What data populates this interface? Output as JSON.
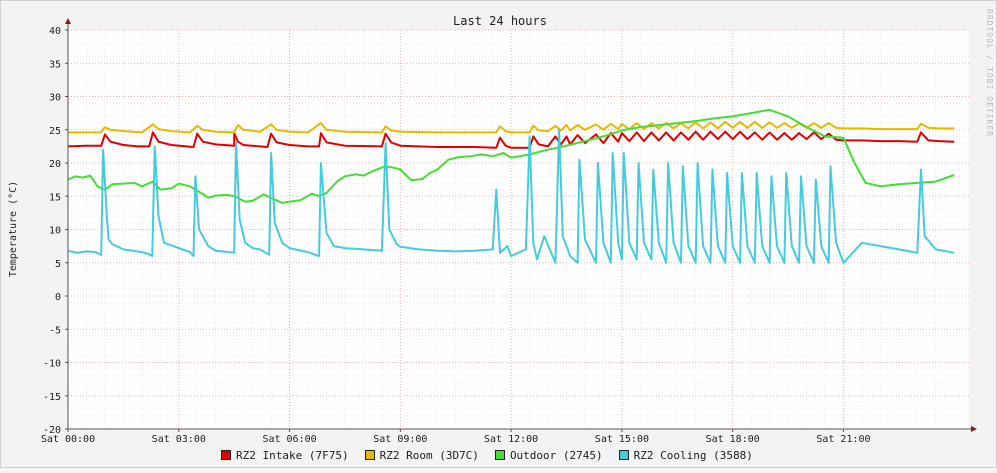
{
  "chart_data": {
    "type": "line",
    "title": "Last 24 hours",
    "ylabel": "Temperature (°C)",
    "watermark": "RRDTOOL / TOBI OETIKER",
    "ylim": [
      -20,
      40
    ],
    "yticks": [
      40,
      35,
      30,
      25,
      20,
      15,
      10,
      5,
      0,
      -5,
      -10,
      -15,
      -20
    ],
    "xlim": [
      0,
      24.4
    ],
    "xticks": [
      {
        "x": 0,
        "label": "Sat 00:00"
      },
      {
        "x": 3,
        "label": "Sat 03:00"
      },
      {
        "x": 6,
        "label": "Sat 06:00"
      },
      {
        "x": 9,
        "label": "Sat 09:00"
      },
      {
        "x": 12,
        "label": "Sat 12:00"
      },
      {
        "x": 15,
        "label": "Sat 15:00"
      },
      {
        "x": 18,
        "label": "Sat 18:00"
      },
      {
        "x": 21,
        "label": "Sat 21:00"
      }
    ],
    "grid": true,
    "legend_position": "bottom",
    "colors": {
      "background": "#f3f3f3",
      "canvas": "#ffffff",
      "grid_major": "#e6b3b3",
      "grid_minor": "#ececec",
      "axis": "#555555",
      "arrow": "#8b1a1a"
    },
    "series": [
      {
        "name": "RZ2 Intake (7F75)",
        "color": "#e00000",
        "x": [
          0.0,
          0.5,
          0.9,
          1.0,
          1.15,
          1.5,
          1.9,
          2.2,
          2.3,
          2.45,
          2.8,
          3.2,
          3.4,
          3.5,
          3.65,
          4.0,
          4.5,
          4.5,
          4.6,
          4.75,
          5.2,
          5.4,
          5.5,
          5.65,
          6.0,
          6.5,
          6.8,
          6.85,
          7.0,
          7.5,
          8.5,
          8.6,
          8.75,
          9.0,
          10.0,
          11.0,
          11.6,
          11.7,
          11.85,
          12.0,
          12.5,
          12.6,
          12.75,
          13.0,
          13.2,
          13.35,
          13.5,
          13.6,
          13.8,
          14.0,
          14.3,
          14.5,
          14.7,
          14.9,
          15.0,
          15.2,
          15.4,
          15.6,
          15.8,
          16.0,
          16.2,
          16.4,
          16.6,
          16.8,
          17.0,
          17.2,
          17.4,
          17.6,
          17.8,
          18.0,
          18.2,
          18.4,
          18.6,
          18.8,
          19.0,
          19.2,
          19.4,
          19.6,
          19.8,
          20.0,
          20.2,
          20.4,
          20.6,
          20.8,
          21.0,
          21.5,
          22.0,
          22.5,
          23.0,
          23.1,
          23.3,
          23.6,
          24.0
        ],
        "y": [
          22.5,
          22.6,
          22.6,
          24.3,
          23.2,
          22.7,
          22.5,
          22.5,
          24.6,
          23.2,
          22.7,
          22.5,
          22.4,
          24.4,
          23.2,
          22.8,
          22.6,
          24.5,
          23.2,
          22.7,
          22.5,
          22.4,
          24.4,
          23.1,
          22.7,
          22.5,
          22.5,
          24.5,
          23.1,
          22.6,
          22.5,
          24.4,
          23.1,
          22.6,
          22.4,
          22.4,
          22.3,
          23.8,
          22.6,
          22.3,
          22.3,
          24.0,
          22.8,
          22.5,
          24.0,
          22.8,
          24.0,
          22.8,
          24.2,
          23.0,
          24.3,
          23.0,
          24.5,
          23.2,
          24.5,
          23.3,
          24.6,
          23.3,
          24.6,
          23.4,
          24.6,
          23.4,
          24.6,
          23.5,
          24.7,
          23.5,
          24.7,
          23.6,
          24.7,
          23.6,
          24.7,
          23.6,
          24.6,
          23.5,
          24.6,
          23.5,
          24.5,
          23.5,
          24.5,
          23.6,
          24.6,
          23.6,
          24.4,
          23.5,
          23.4,
          23.4,
          23.3,
          23.3,
          23.2,
          24.6,
          23.4,
          23.3,
          23.2
        ]
      },
      {
        "name": "RZ2 Room (3D7C)",
        "color": "#e8b800",
        "x": [
          0.0,
          0.5,
          0.9,
          1.0,
          1.15,
          1.5,
          2.0,
          2.3,
          2.45,
          2.8,
          3.3,
          3.5,
          3.65,
          4.0,
          4.5,
          4.6,
          4.75,
          5.2,
          5.5,
          5.65,
          6.0,
          6.5,
          6.85,
          7.0,
          7.5,
          8.5,
          8.6,
          8.75,
          9.0,
          10.0,
          11.0,
          11.6,
          11.7,
          11.85,
          12.0,
          12.5,
          12.6,
          12.75,
          13.0,
          13.2,
          13.35,
          13.5,
          13.6,
          13.8,
          14.0,
          14.3,
          14.5,
          14.7,
          14.9,
          15.0,
          15.2,
          15.4,
          15.6,
          15.8,
          16.0,
          16.2,
          16.4,
          16.6,
          16.8,
          17.0,
          17.2,
          17.4,
          17.6,
          17.8,
          18.0,
          18.2,
          18.4,
          18.6,
          18.8,
          19.0,
          19.2,
          19.4,
          19.6,
          19.8,
          20.0,
          20.2,
          20.4,
          20.6,
          20.8,
          21.0,
          21.5,
          22.0,
          22.5,
          23.0,
          23.1,
          23.3,
          23.6,
          24.0
        ],
        "y": [
          24.6,
          24.6,
          24.6,
          25.4,
          25.0,
          24.8,
          24.6,
          25.8,
          25.1,
          24.8,
          24.6,
          25.6,
          25.0,
          24.7,
          24.6,
          25.7,
          25.0,
          24.7,
          25.8,
          25.0,
          24.7,
          24.6,
          26.0,
          25.0,
          24.7,
          24.6,
          25.5,
          24.9,
          24.7,
          24.6,
          24.6,
          24.6,
          25.5,
          24.8,
          24.6,
          24.6,
          25.6,
          24.9,
          24.8,
          25.6,
          24.9,
          25.7,
          24.9,
          25.7,
          25.0,
          25.8,
          25.0,
          25.9,
          25.1,
          25.9,
          25.1,
          26.0,
          25.1,
          26.0,
          25.2,
          26.0,
          25.2,
          26.0,
          25.2,
          26.1,
          25.2,
          26.1,
          25.2,
          26.2,
          25.3,
          26.2,
          25.3,
          26.2,
          25.3,
          26.1,
          25.3,
          26.0,
          25.3,
          26.0,
          25.3,
          26.0,
          25.3,
          26.0,
          25.3,
          25.2,
          25.2,
          25.1,
          25.1,
          25.1,
          25.9,
          25.3,
          25.2,
          25.2
        ]
      },
      {
        "name": "Outdoor (2745)",
        "color": "#44dd33",
        "x": [
          0.0,
          0.2,
          0.4,
          0.6,
          0.8,
          1.0,
          1.2,
          1.5,
          1.8,
          2.0,
          2.3,
          2.5,
          2.8,
          3.0,
          3.3,
          3.6,
          3.8,
          4.0,
          4.3,
          4.5,
          4.8,
          5.0,
          5.3,
          5.6,
          5.8,
          6.0,
          6.3,
          6.6,
          6.8,
          7.0,
          7.3,
          7.5,
          7.8,
          8.0,
          8.3,
          8.6,
          8.9,
          9.0,
          9.3,
          9.6,
          9.8,
          10.0,
          10.3,
          10.6,
          10.9,
          11.2,
          11.5,
          11.8,
          12.0,
          12.5,
          13.0,
          13.5,
          14.0,
          14.5,
          15.0,
          15.5,
          16.0,
          16.5,
          17.0,
          17.5,
          18.0,
          18.5,
          19.0,
          19.5,
          20.0,
          20.5,
          21.0,
          21.3,
          21.6,
          22.0,
          22.5,
          23.0,
          23.5,
          24.0
        ],
        "y": [
          17.5,
          18.0,
          17.8,
          18.1,
          16.5,
          16.0,
          16.8,
          16.9,
          17.0,
          16.5,
          17.2,
          16.0,
          16.2,
          16.9,
          16.5,
          15.5,
          14.8,
          15.1,
          15.2,
          15.0,
          14.2,
          14.3,
          15.3,
          14.5,
          14.0,
          14.2,
          14.4,
          15.4,
          15.0,
          15.5,
          17.3,
          18.0,
          18.3,
          18.1,
          18.9,
          19.5,
          19.2,
          19.0,
          17.4,
          17.6,
          18.5,
          19.0,
          20.5,
          20.9,
          21.0,
          21.3,
          21.0,
          21.5,
          20.8,
          21.3,
          22.0,
          22.6,
          23.3,
          24.0,
          24.9,
          25.4,
          25.7,
          26.0,
          26.3,
          26.7,
          27.0,
          27.5,
          28.0,
          27.0,
          25.4,
          24.0,
          23.8,
          20.0,
          17.0,
          16.5,
          16.8,
          17.0,
          17.2,
          18.2
        ]
      },
      {
        "name": "RZ2 Cooling (3588)",
        "color": "#44ccdd",
        "x": [
          0.0,
          0.25,
          0.5,
          0.75,
          0.9,
          0.95,
          1.05,
          1.1,
          1.2,
          1.5,
          2.0,
          2.2,
          2.28,
          2.35,
          2.45,
          2.6,
          3.0,
          3.3,
          3.4,
          3.45,
          3.55,
          3.8,
          4.0,
          4.5,
          4.55,
          4.65,
          4.8,
          5.0,
          5.2,
          5.45,
          5.5,
          5.6,
          5.8,
          6.0,
          6.5,
          6.8,
          6.85,
          7.0,
          7.2,
          7.5,
          8.0,
          8.5,
          8.6,
          8.7,
          8.9,
          9.0,
          9.5,
          10.0,
          10.5,
          11.0,
          11.5,
          11.6,
          11.7,
          11.9,
          12.0,
          12.4,
          12.5,
          12.6,
          12.7,
          12.9,
          13.2,
          13.3,
          13.4,
          13.6,
          13.8,
          13.85,
          14.0,
          14.3,
          14.35,
          14.5,
          14.7,
          14.75,
          14.9,
          15.0,
          15.05,
          15.2,
          15.4,
          15.45,
          15.6,
          15.8,
          15.85,
          16.0,
          16.2,
          16.25,
          16.4,
          16.6,
          16.65,
          16.8,
          17.0,
          17.05,
          17.2,
          17.4,
          17.45,
          17.6,
          17.8,
          17.85,
          18.0,
          18.2,
          18.25,
          18.4,
          18.6,
          18.65,
          18.8,
          19.0,
          19.05,
          19.2,
          19.4,
          19.45,
          19.6,
          19.8,
          19.85,
          20.0,
          20.2,
          20.25,
          20.4,
          20.6,
          20.65,
          20.8,
          21.0,
          21.5,
          22.0,
          22.5,
          23.0,
          23.1,
          23.2,
          23.5,
          24.0
        ],
        "y": [
          6.8,
          6.5,
          6.7,
          6.6,
          6.2,
          22.0,
          12.0,
          8.5,
          7.8,
          7.0,
          6.6,
          6.3,
          6.0,
          22.5,
          12.0,
          8.0,
          7.2,
          6.6,
          6.0,
          18.0,
          10.0,
          7.5,
          6.8,
          6.5,
          23.0,
          11.5,
          8.0,
          7.2,
          7.0,
          6.2,
          21.5,
          11.0,
          8.0,
          7.2,
          6.6,
          6.0,
          20.0,
          9.5,
          7.5,
          7.2,
          7.0,
          6.8,
          23.0,
          10.0,
          7.8,
          7.4,
          7.0,
          6.8,
          6.7,
          6.8,
          7.0,
          16.0,
          6.5,
          7.5,
          6.0,
          7.0,
          24.0,
          8.0,
          5.5,
          9.0,
          5.0,
          25.0,
          9.0,
          6.0,
          5.0,
          20.5,
          8.5,
          5.0,
          20.0,
          8.0,
          5.0,
          21.5,
          8.0,
          5.5,
          21.5,
          8.0,
          5.5,
          20.0,
          8.0,
          5.5,
          19.0,
          8.0,
          5.0,
          20.0,
          8.0,
          5.0,
          19.5,
          7.5,
          5.0,
          20.0,
          7.5,
          5.0,
          19.0,
          7.5,
          5.0,
          18.5,
          7.5,
          5.0,
          18.5,
          7.5,
          5.0,
          18.5,
          7.5,
          5.0,
          18.0,
          7.5,
          5.0,
          18.5,
          7.5,
          5.0,
          18.0,
          7.5,
          5.0,
          17.5,
          7.5,
          5.0,
          19.5,
          8.0,
          5.0,
          8.0,
          7.5,
          7.0,
          6.5,
          19.0,
          9.0,
          7.0,
          6.5
        ]
      }
    ]
  }
}
